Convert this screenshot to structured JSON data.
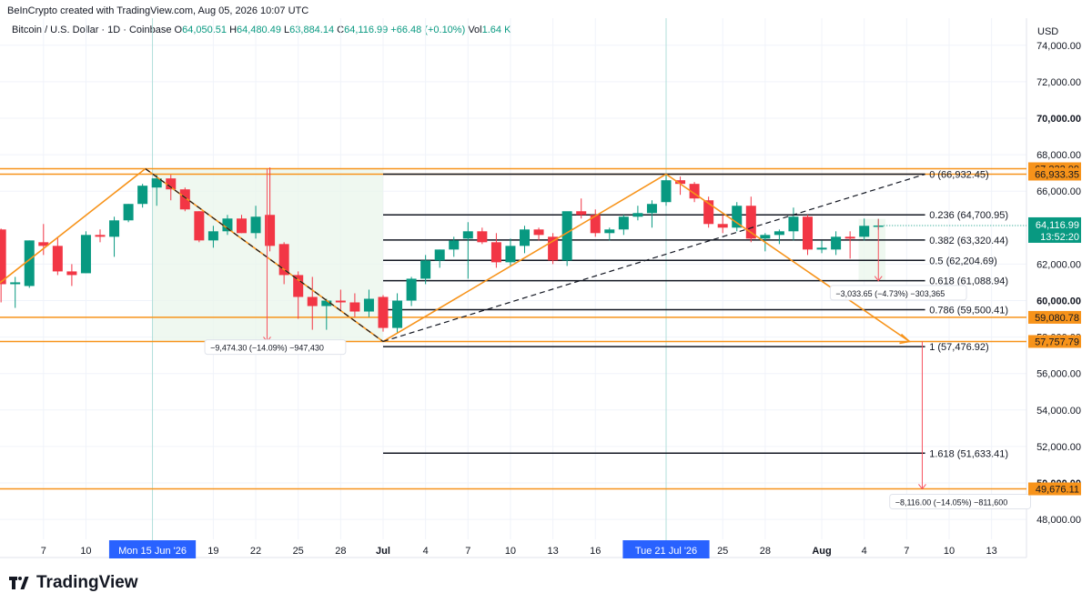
{
  "header": {
    "attribution": "BeInCrypto created with TradingView.com, Aug 05, 2026 10:07 UTC"
  },
  "legend": {
    "symbol": "Bitcoin / U.S. Dollar · 1D · Coinbase",
    "o_label": "O",
    "o": "64,050.51",
    "h_label": "H",
    "h": "64,480.49",
    "l_label": "L",
    "l": "63,884.14",
    "c_label": "C",
    "c": "64,116.99",
    "change": "+66.48 (+0.10%)",
    "vol_label": "Vol",
    "vol": "1.64 K"
  },
  "axis": {
    "currency": "USD",
    "y_ticks": [
      {
        "v": 74000,
        "t": "74,000.00"
      },
      {
        "v": 72000,
        "t": "72,000.00"
      },
      {
        "v": 70000,
        "t": "70,000.00",
        "bold": true
      },
      {
        "v": 68000,
        "t": "68,000.00"
      },
      {
        "v": 66000,
        "t": "66,000.00"
      },
      {
        "v": 62000,
        "t": "62,000.00"
      },
      {
        "v": 60000,
        "t": "60,000.00",
        "bold": true
      },
      {
        "v": 58000,
        "t": "58,000.00"
      },
      {
        "v": 56000,
        "t": "56,000.00"
      },
      {
        "v": 54000,
        "t": "54,000.00"
      },
      {
        "v": 52000,
        "t": "52,000.00"
      },
      {
        "v": 50000,
        "t": "50,000.00",
        "bold": true
      },
      {
        "v": 48000,
        "t": "48,000.00"
      }
    ],
    "x_ticks": [
      {
        "d": 7,
        "t": "7"
      },
      {
        "d": 10,
        "t": "10"
      },
      {
        "d": 19,
        "t": "19"
      },
      {
        "d": 22,
        "t": "22"
      },
      {
        "d": 25,
        "t": "25"
      },
      {
        "d": 28,
        "t": "28"
      },
      {
        "d": 31,
        "t": "Jul",
        "bold": true
      },
      {
        "d": 34,
        "t": "4"
      },
      {
        "d": 37,
        "t": "7"
      },
      {
        "d": 40,
        "t": "10"
      },
      {
        "d": 43,
        "t": "13"
      },
      {
        "d": 46,
        "t": "16"
      },
      {
        "d": 55,
        "t": "25"
      },
      {
        "d": 58,
        "t": "28"
      },
      {
        "d": 62,
        "t": "Aug",
        "bold": true
      },
      {
        "d": 65,
        "t": "4"
      },
      {
        "d": 68,
        "t": "7"
      },
      {
        "d": 71,
        "t": "10"
      },
      {
        "d": 74,
        "t": "13"
      }
    ],
    "x_highlight": [
      {
        "d": 14.7,
        "t": "Mon 15 Jun '26"
      },
      {
        "d": 51,
        "t": "Tue 21 Jul '26"
      }
    ],
    "price_tags": [
      {
        "v": 67232.09,
        "t": "67,232.09",
        "color": "#f7931a"
      },
      {
        "v": 66933.35,
        "t": "66,933.35",
        "color": "#f7931a"
      },
      {
        "v": 59080.78,
        "t": "59,080.78",
        "color": "#f7931a"
      },
      {
        "v": 57757.79,
        "t": "57,757.79",
        "color": "#f7931a"
      },
      {
        "v": 49676.11,
        "t": "49,676.11",
        "color": "#f7931a"
      }
    ],
    "current_price": {
      "v": 64116.99,
      "t": "64,116.99",
      "countdown": "13:52:20",
      "color": "#089981"
    }
  },
  "fib": [
    {
      "level": "0",
      "price": 66932.45,
      "t": "0 (66,932.45)"
    },
    {
      "level": "0.236",
      "price": 64700.95,
      "t": "0.236 (64,700.95)"
    },
    {
      "level": "0.382",
      "price": 63320.44,
      "t": "0.382 (63,320.44)"
    },
    {
      "level": "0.5",
      "price": 62204.69,
      "t": "0.5 (62,204.69)"
    },
    {
      "level": "0.618",
      "price": 61088.94,
      "t": "0.618 (61,088.94)"
    },
    {
      "level": "0.786",
      "price": 59500.41,
      "t": "0.786 (59,500.41)"
    },
    {
      "level": "1",
      "price": 57476.92,
      "t": "1 (57,476.92)"
    },
    {
      "level": "1.618",
      "price": 51633.41,
      "t": "1.618 (51,633.41)"
    }
  ],
  "measures": [
    {
      "t": "−9,474.30 (−14.09%) −947,430"
    },
    {
      "t": "−3,033.65 (−4.73%) −303,365"
    },
    {
      "t": "−8,116.00 (−14.05%) −811,600"
    }
  ],
  "colors": {
    "up": "#089981",
    "down": "#f23645",
    "orange": "#f7931a",
    "grid": "#f0f3fa",
    "range_fill": "#e8f5e9"
  },
  "chart_data": {
    "type": "candlestick",
    "title": "Bitcoin / U.S. Dollar · 1D · Coinbase",
    "ylim": [
      47000,
      75500
    ],
    "x_unit": "day (0 = Jun 1, 2026)",
    "candles": [
      {
        "d": 4,
        "o": 63900,
        "h": 63950,
        "l": 59900,
        "c": 60900
      },
      {
        "d": 5,
        "o": 60900,
        "h": 61300,
        "l": 59600,
        "c": 61000
      },
      {
        "d": 6,
        "o": 60800,
        "h": 63300,
        "l": 60700,
        "c": 63300
      },
      {
        "d": 7,
        "o": 63200,
        "h": 64200,
        "l": 62500,
        "c": 63000
      },
      {
        "d": 8,
        "o": 63000,
        "h": 63500,
        "l": 61400,
        "c": 61600
      },
      {
        "d": 9,
        "o": 61600,
        "h": 62000,
        "l": 60800,
        "c": 61400
      },
      {
        "d": 10,
        "o": 61500,
        "h": 63800,
        "l": 61500,
        "c": 63600
      },
      {
        "d": 11,
        "o": 63600,
        "h": 63900,
        "l": 63200,
        "c": 63500
      },
      {
        "d": 12,
        "o": 63500,
        "h": 64600,
        "l": 62400,
        "c": 64400
      },
      {
        "d": 13,
        "o": 64400,
        "h": 65300,
        "l": 64300,
        "c": 65300
      },
      {
        "d": 14,
        "o": 65300,
        "h": 66400,
        "l": 65100,
        "c": 66300
      },
      {
        "d": 15,
        "o": 66200,
        "h": 66900,
        "l": 65200,
        "c": 66700
      },
      {
        "d": 16,
        "o": 66700,
        "h": 66900,
        "l": 65500,
        "c": 66100
      },
      {
        "d": 17,
        "o": 66100,
        "h": 66200,
        "l": 64900,
        "c": 65000
      },
      {
        "d": 18,
        "o": 64900,
        "h": 64900,
        "l": 63200,
        "c": 63300
      },
      {
        "d": 19,
        "o": 63300,
        "h": 64100,
        "l": 62900,
        "c": 63800
      },
      {
        "d": 20,
        "o": 63800,
        "h": 64700,
        "l": 63600,
        "c": 64500
      },
      {
        "d": 21,
        "o": 64500,
        "h": 64700,
        "l": 63700,
        "c": 63700
      },
      {
        "d": 22,
        "o": 63700,
        "h": 65200,
        "l": 63400,
        "c": 64600
      },
      {
        "d": 23,
        "o": 64700,
        "h": 67300,
        "l": 62700,
        "c": 63000
      },
      {
        "d": 24,
        "o": 63100,
        "h": 63200,
        "l": 60900,
        "c": 61400
      },
      {
        "d": 25,
        "o": 61400,
        "h": 61600,
        "l": 59000,
        "c": 60200
      },
      {
        "d": 26,
        "o": 60200,
        "h": 61300,
        "l": 58400,
        "c": 59700
      },
      {
        "d": 27,
        "o": 59700,
        "h": 60100,
        "l": 58400,
        "c": 60000
      },
      {
        "d": 28,
        "o": 60000,
        "h": 60600,
        "l": 59400,
        "c": 59900
      },
      {
        "d": 29,
        "o": 59900,
        "h": 60400,
        "l": 59100,
        "c": 59400
      },
      {
        "d": 30,
        "o": 59400,
        "h": 60600,
        "l": 59100,
        "c": 60100
      },
      {
        "d": 31,
        "o": 60200,
        "h": 60300,
        "l": 58300,
        "c": 58500
      },
      {
        "d": 32,
        "o": 58500,
        "h": 60400,
        "l": 58200,
        "c": 60000
      },
      {
        "d": 33,
        "o": 60000,
        "h": 61300,
        "l": 59700,
        "c": 61200
      },
      {
        "d": 34,
        "o": 61200,
        "h": 62500,
        "l": 60900,
        "c": 62200
      },
      {
        "d": 35,
        "o": 62200,
        "h": 62800,
        "l": 61800,
        "c": 62800
      },
      {
        "d": 36,
        "o": 62800,
        "h": 63500,
        "l": 62400,
        "c": 63300
      },
      {
        "d": 37,
        "o": 63400,
        "h": 64300,
        "l": 61200,
        "c": 63800
      },
      {
        "d": 38,
        "o": 63800,
        "h": 64000,
        "l": 63100,
        "c": 63200
      },
      {
        "d": 39,
        "o": 63200,
        "h": 63700,
        "l": 61800,
        "c": 62100
      },
      {
        "d": 40,
        "o": 62100,
        "h": 63400,
        "l": 61900,
        "c": 63000
      },
      {
        "d": 41,
        "o": 63000,
        "h": 64100,
        "l": 62600,
        "c": 63900
      },
      {
        "d": 42,
        "o": 63900,
        "h": 64000,
        "l": 63300,
        "c": 63600
      },
      {
        "d": 43,
        "o": 63500,
        "h": 63700,
        "l": 62000,
        "c": 62200
      },
      {
        "d": 44,
        "o": 62200,
        "h": 64800,
        "l": 61900,
        "c": 64900
      },
      {
        "d": 45,
        "o": 64900,
        "h": 65600,
        "l": 64500,
        "c": 64700
      },
      {
        "d": 46,
        "o": 64700,
        "h": 65000,
        "l": 63500,
        "c": 63700
      },
      {
        "d": 47,
        "o": 63700,
        "h": 64000,
        "l": 63300,
        "c": 63900
      },
      {
        "d": 48,
        "o": 63900,
        "h": 64700,
        "l": 63600,
        "c": 64600
      },
      {
        "d": 49,
        "o": 64600,
        "h": 65200,
        "l": 64400,
        "c": 64800
      },
      {
        "d": 50,
        "o": 64800,
        "h": 65500,
        "l": 64000,
        "c": 65300
      },
      {
        "d": 51,
        "o": 65400,
        "h": 66900,
        "l": 65200,
        "c": 66600
      },
      {
        "d": 52,
        "o": 66600,
        "h": 66800,
        "l": 65800,
        "c": 66400
      },
      {
        "d": 53,
        "o": 66400,
        "h": 66500,
        "l": 65400,
        "c": 65600
      },
      {
        "d": 54,
        "o": 65500,
        "h": 65700,
        "l": 64000,
        "c": 64200
      },
      {
        "d": 55,
        "o": 64200,
        "h": 64700,
        "l": 63700,
        "c": 64000
      },
      {
        "d": 56,
        "o": 64000,
        "h": 65400,
        "l": 63800,
        "c": 65200
      },
      {
        "d": 57,
        "o": 65200,
        "h": 65700,
        "l": 63200,
        "c": 63400
      },
      {
        "d": 58,
        "o": 63400,
        "h": 63700,
        "l": 62700,
        "c": 63600
      },
      {
        "d": 59,
        "o": 63600,
        "h": 63900,
        "l": 63100,
        "c": 63800
      },
      {
        "d": 60,
        "o": 63800,
        "h": 65100,
        "l": 63300,
        "c": 64600
      },
      {
        "d": 61,
        "o": 64600,
        "h": 64700,
        "l": 62500,
        "c": 62800
      },
      {
        "d": 62,
        "o": 62800,
        "h": 63300,
        "l": 62600,
        "c": 62900
      },
      {
        "d": 63,
        "o": 62800,
        "h": 63800,
        "l": 62500,
        "c": 63500
      },
      {
        "d": 64,
        "o": 63500,
        "h": 63800,
        "l": 62300,
        "c": 63400
      },
      {
        "d": 65,
        "o": 63500,
        "h": 64500,
        "l": 63300,
        "c": 64100
      },
      {
        "d": 66,
        "o": 64050.51,
        "h": 64480.49,
        "l": 63884.14,
        "c": 64116.99
      }
    ]
  }
}
